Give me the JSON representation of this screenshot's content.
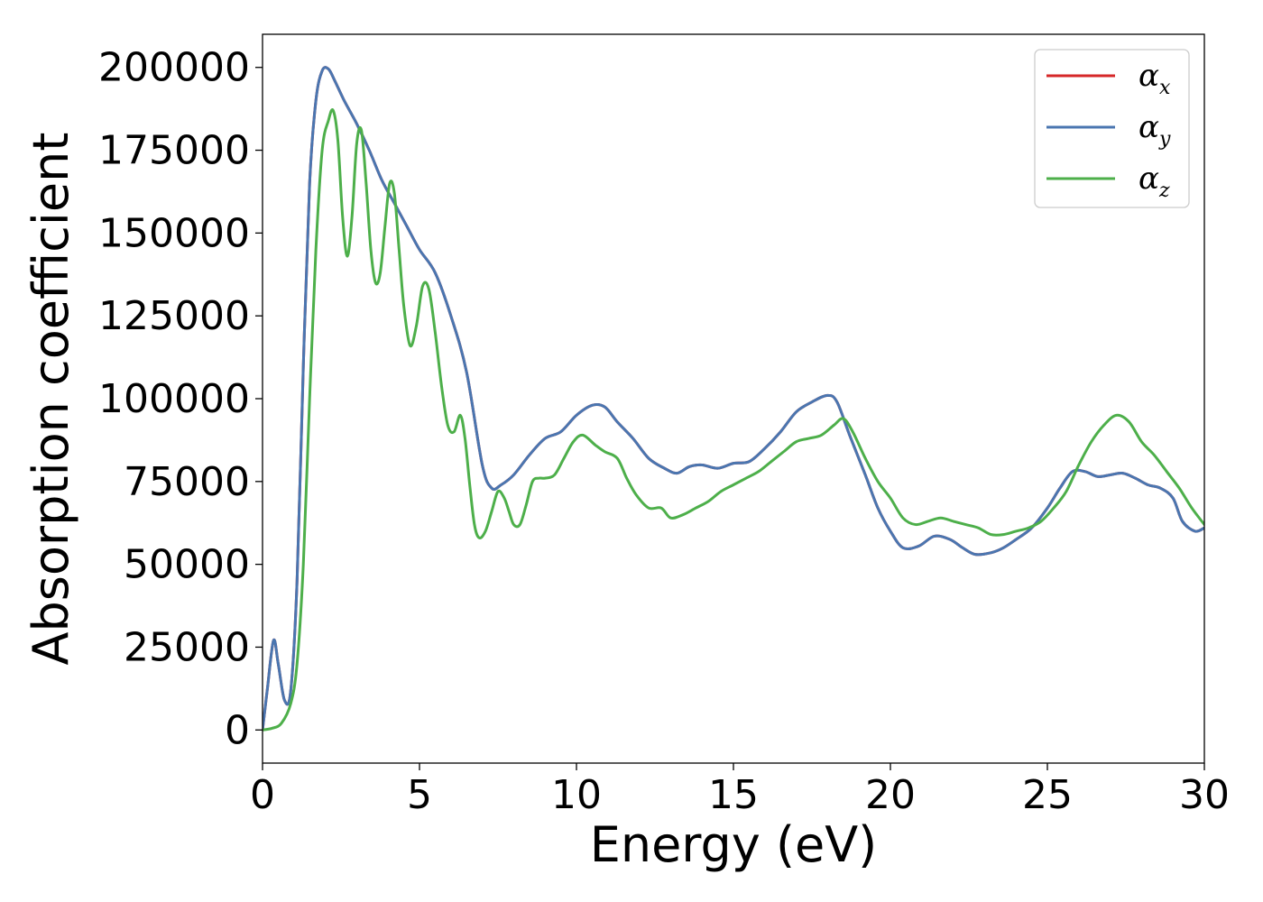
{
  "chart_data": {
    "type": "line",
    "title": "",
    "xlabel": "Energy (eV)",
    "ylabel": "Absorption coefficient",
    "xlim": [
      0,
      30
    ],
    "ylim": [
      -10000,
      210000
    ],
    "xticks": [
      0,
      5,
      10,
      15,
      20,
      25,
      30
    ],
    "yticks": [
      0,
      25000,
      50000,
      75000,
      100000,
      125000,
      150000,
      175000,
      200000
    ],
    "xtick_labels": [
      "0",
      "5",
      "10",
      "15",
      "20",
      "25",
      "30"
    ],
    "ytick_labels": [
      "0",
      "25000",
      "50000",
      "75000",
      "100000",
      "125000",
      "150000",
      "175000",
      "200000"
    ],
    "grid": false,
    "legend_position": "top-right",
    "series": [
      {
        "name": "αx",
        "name_base": "α",
        "name_sub": "x",
        "color": "#d62728",
        "x": [
          0,
          0.15,
          0.35,
          0.5,
          0.7,
          0.9,
          1.1,
          1.3,
          1.5,
          1.7,
          1.9,
          2.1,
          2.3,
          2.6,
          3.0,
          3.4,
          3.8,
          4.2,
          4.6,
          5.0,
          5.5,
          6.0,
          6.5,
          7.0,
          7.3,
          7.6,
          8.0,
          8.5,
          9.0,
          9.5,
          10.0,
          10.5,
          10.9,
          11.3,
          11.8,
          12.3,
          12.8,
          13.2,
          13.6,
          14.0,
          14.5,
          15.0,
          15.5,
          16.0,
          16.5,
          17.0,
          17.5,
          18.0,
          18.3,
          18.7,
          19.2,
          19.6,
          20.0,
          20.4,
          20.9,
          21.4,
          21.9,
          22.3,
          22.7,
          23.2,
          23.6,
          24.0,
          24.5,
          25.0,
          25.4,
          25.8,
          26.2,
          26.6,
          27.0,
          27.4,
          27.8,
          28.2,
          28.6,
          29.0,
          29.3,
          29.7,
          30.0
        ],
        "values": [
          0,
          12000,
          27000,
          20000,
          9000,
          12000,
          45000,
          110000,
          165000,
          190000,
          199000,
          199500,
          196000,
          190000,
          183000,
          175000,
          166000,
          159000,
          152000,
          145000,
          138000,
          125000,
          108000,
          80000,
          73000,
          74000,
          77000,
          83000,
          88000,
          90000,
          95000,
          98000,
          97500,
          93000,
          88000,
          82000,
          79000,
          77500,
          79500,
          80000,
          79000,
          80500,
          81000,
          85000,
          90000,
          96000,
          99000,
          101000,
          99000,
          89000,
          77000,
          67000,
          60000,
          55000,
          55500,
          58500,
          57500,
          55000,
          53000,
          53500,
          55000,
          57500,
          61000,
          67000,
          73000,
          78000,
          78000,
          76500,
          77000,
          77500,
          76000,
          74000,
          73000,
          70000,
          63000,
          60000,
          61000
        ]
      },
      {
        "name": "αy",
        "name_base": "α",
        "name_sub": "y",
        "color": "#4a76b0",
        "x": [
          0,
          0.15,
          0.35,
          0.5,
          0.7,
          0.9,
          1.1,
          1.3,
          1.5,
          1.7,
          1.9,
          2.1,
          2.3,
          2.6,
          3.0,
          3.4,
          3.8,
          4.2,
          4.6,
          5.0,
          5.5,
          6.0,
          6.5,
          7.0,
          7.3,
          7.6,
          8.0,
          8.5,
          9.0,
          9.5,
          10.0,
          10.5,
          10.9,
          11.3,
          11.8,
          12.3,
          12.8,
          13.2,
          13.6,
          14.0,
          14.5,
          15.0,
          15.5,
          16.0,
          16.5,
          17.0,
          17.5,
          18.0,
          18.3,
          18.7,
          19.2,
          19.6,
          20.0,
          20.4,
          20.9,
          21.4,
          21.9,
          22.3,
          22.7,
          23.2,
          23.6,
          24.0,
          24.5,
          25.0,
          25.4,
          25.8,
          26.2,
          26.6,
          27.0,
          27.4,
          27.8,
          28.2,
          28.6,
          29.0,
          29.3,
          29.7,
          30.0
        ],
        "values": [
          0,
          12000,
          27000,
          20000,
          9000,
          12000,
          45000,
          110000,
          165000,
          190000,
          199000,
          199500,
          196000,
          190000,
          183000,
          175000,
          166000,
          159000,
          152000,
          145000,
          138000,
          125000,
          108000,
          80000,
          73000,
          74000,
          77000,
          83000,
          88000,
          90000,
          95000,
          98000,
          97500,
          93000,
          88000,
          82000,
          79000,
          77500,
          79500,
          80000,
          79000,
          80500,
          81000,
          85000,
          90000,
          96000,
          99000,
          101000,
          99000,
          89000,
          77000,
          67000,
          60000,
          55000,
          55500,
          58500,
          57500,
          55000,
          53000,
          53500,
          55000,
          57500,
          61000,
          67000,
          73000,
          78000,
          78000,
          76500,
          77000,
          77500,
          76000,
          74000,
          73000,
          70000,
          63000,
          60000,
          61000
        ]
      },
      {
        "name": "αz",
        "name_base": "α",
        "name_sub": "z",
        "color": "#4daf4a",
        "x": [
          0,
          0.3,
          0.6,
          0.9,
          1.1,
          1.3,
          1.5,
          1.7,
          1.9,
          2.1,
          2.25,
          2.4,
          2.55,
          2.7,
          2.85,
          3.0,
          3.15,
          3.3,
          3.45,
          3.6,
          3.75,
          3.9,
          4.05,
          4.2,
          4.35,
          4.5,
          4.7,
          4.9,
          5.1,
          5.3,
          5.5,
          5.7,
          5.9,
          6.1,
          6.3,
          6.45,
          6.6,
          6.75,
          6.9,
          7.1,
          7.3,
          7.5,
          7.7,
          7.85,
          8.0,
          8.2,
          8.4,
          8.6,
          8.8,
          9.0,
          9.3,
          9.6,
          9.9,
          10.2,
          10.6,
          10.9,
          11.3,
          11.6,
          11.9,
          12.3,
          12.7,
          13.0,
          13.4,
          13.8,
          14.2,
          14.6,
          15.0,
          15.4,
          15.8,
          16.2,
          16.6,
          17.0,
          17.4,
          17.8,
          18.2,
          18.5,
          18.8,
          19.2,
          19.6,
          20.0,
          20.4,
          20.8,
          21.2,
          21.6,
          22.0,
          22.4,
          22.8,
          23.2,
          23.6,
          24.0,
          24.4,
          24.8,
          25.2,
          25.6,
          26.0,
          26.4,
          26.8,
          27.2,
          27.6,
          28.0,
          28.4,
          28.8,
          29.2,
          29.6,
          30.0
        ],
        "values": [
          0,
          500,
          2000,
          8000,
          20000,
          50000,
          100000,
          145000,
          175000,
          184000,
          187000,
          178000,
          155000,
          143000,
          155000,
          177000,
          181000,
          165000,
          145000,
          135000,
          138000,
          152000,
          165000,
          162000,
          145000,
          128000,
          116000,
          122000,
          134000,
          133000,
          120000,
          104000,
          92000,
          90000,
          95000,
          88000,
          74000,
          62000,
          58000,
          60000,
          66000,
          72000,
          70000,
          66000,
          62000,
          62000,
          68000,
          75000,
          76000,
          76000,
          77000,
          82000,
          87000,
          89000,
          86000,
          84000,
          82000,
          76000,
          71000,
          67000,
          67000,
          64000,
          65000,
          67000,
          69000,
          72000,
          74000,
          76000,
          78000,
          81000,
          84000,
          87000,
          88000,
          89000,
          92000,
          94000,
          90000,
          82000,
          75000,
          70000,
          64000,
          62000,
          63000,
          64000,
          63000,
          62000,
          61000,
          59000,
          59000,
          60000,
          61000,
          63000,
          67000,
          72000,
          80000,
          87000,
          92000,
          95000,
          93000,
          87000,
          83000,
          78000,
          73000,
          67000,
          62000
        ]
      }
    ]
  }
}
